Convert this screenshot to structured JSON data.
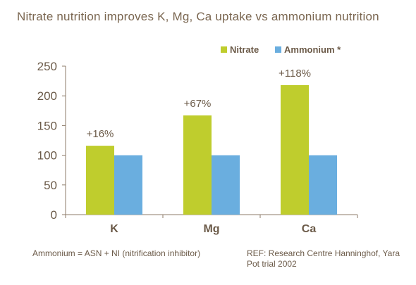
{
  "title": "Nitrate nutrition improves K, Mg, Ca uptake vs ammonium nutrition",
  "footnote": "Ammonium = ASN + NI (nitrification inhibitor)",
  "reference": "REF: Research Centre Hanninghof, Yara Pot trial 2002",
  "colors": {
    "nitrate": "#bfcd2d",
    "ammonium": "#6aaedf",
    "text": "#6b5a48",
    "axis": "#8c7b68"
  },
  "chart_data": {
    "type": "bar",
    "categories": [
      "K",
      "Mg",
      "Ca"
    ],
    "series": [
      {
        "name": "Nitrate",
        "values": [
          116,
          167,
          218
        ]
      },
      {
        "name": "Ammonium *",
        "values": [
          100,
          100,
          100
        ]
      }
    ],
    "annotations": [
      "+16%",
      "+67%",
      "+118%"
    ],
    "ylim": [
      0,
      250
    ],
    "yticks": [
      0,
      50,
      100,
      150,
      200,
      250
    ],
    "grid": false,
    "legend": "top-right"
  }
}
